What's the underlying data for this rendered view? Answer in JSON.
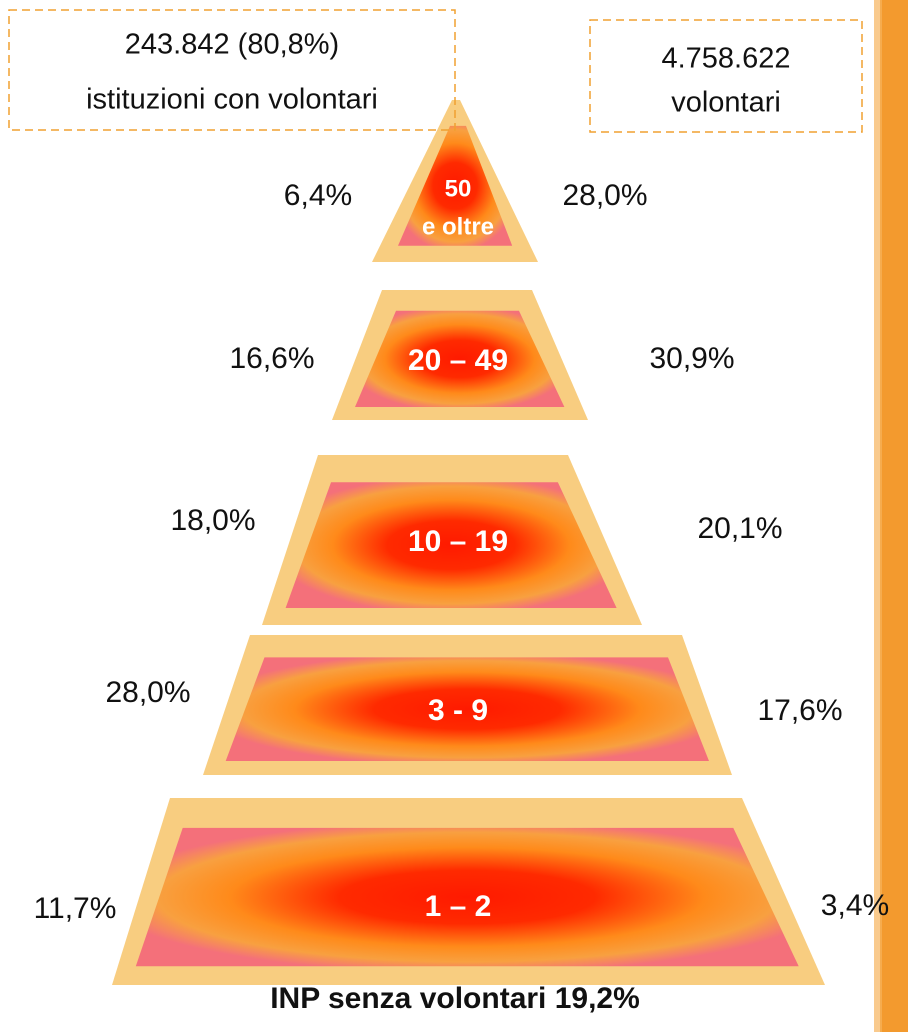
{
  "boxes": [
    {
      "lines": [
        "243.842 (80,8%)",
        "istituzioni con volontari"
      ]
    },
    {
      "lines": [
        "4.758.622",
        "volontari"
      ]
    }
  ],
  "levels": [
    {
      "label": [
        "50",
        "e oltre"
      ],
      "left": "6,4%",
      "right": "28,0%"
    },
    {
      "label": [
        "20 – 49"
      ],
      "left": "16,6%",
      "right": "30,9%"
    },
    {
      "label": [
        "10 – 19"
      ],
      "left": "18,0%",
      "right": "20,1%"
    },
    {
      "label": [
        "3 - 9"
      ],
      "left": "28,0%",
      "right": "17,6%"
    },
    {
      "label": [
        "1 – 2"
      ],
      "left": "11,7%",
      "right": "3,4%"
    }
  ],
  "footer": "INP senza volontari 19,2%"
}
